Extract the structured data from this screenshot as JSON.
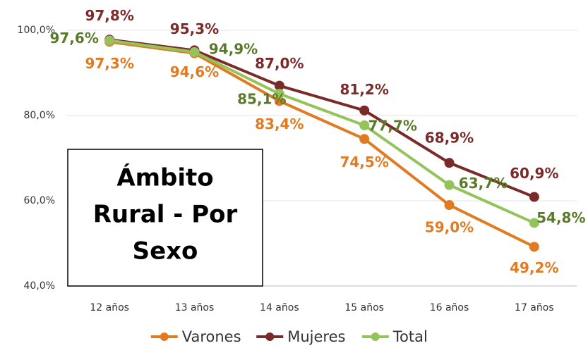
{
  "chart_data": {
    "type": "line",
    "categories": [
      "12 años",
      "13 años",
      "14 años",
      "15 años",
      "16 años",
      "17 años"
    ],
    "series": [
      {
        "name": "Varones",
        "color": "#e07b22",
        "label_color": "#e07b22",
        "values": [
          97.3,
          94.6,
          83.4,
          74.5,
          59.0,
          49.2
        ],
        "value_labels": [
          "97,3%",
          "94,6%",
          "83,4%",
          "74,5%",
          "59,0%",
          "49,2%"
        ]
      },
      {
        "name": "Mujeres",
        "color": "#7b2a2a",
        "label_color": "#7b2a2a",
        "values": [
          97.8,
          95.3,
          87.0,
          81.2,
          68.9,
          60.9
        ],
        "value_labels": [
          "97,8%",
          "95,3%",
          "87,0%",
          "81,2%",
          "68,9%",
          "60,9%"
        ]
      },
      {
        "name": "Total",
        "color": "#93c35a",
        "label_color": "#5a7a2a",
        "values": [
          97.6,
          94.9,
          85.1,
          77.7,
          63.7,
          54.8
        ],
        "value_labels": [
          "97,6%",
          "94,9%",
          "85,1%",
          "77,7%",
          "63,7%",
          "54,8%"
        ]
      }
    ],
    "ylim": [
      40,
      100
    ],
    "yticks": [
      {
        "value": 40,
        "label": "40,0%"
      },
      {
        "value": 60,
        "label": "60,0%"
      },
      {
        "value": 80,
        "label": "80,0%"
      },
      {
        "value": 100,
        "label": "100,0%"
      }
    ],
    "grid": true,
    "annotation": [
      "Ámbito",
      "Rural - Por",
      "Sexo"
    ]
  }
}
